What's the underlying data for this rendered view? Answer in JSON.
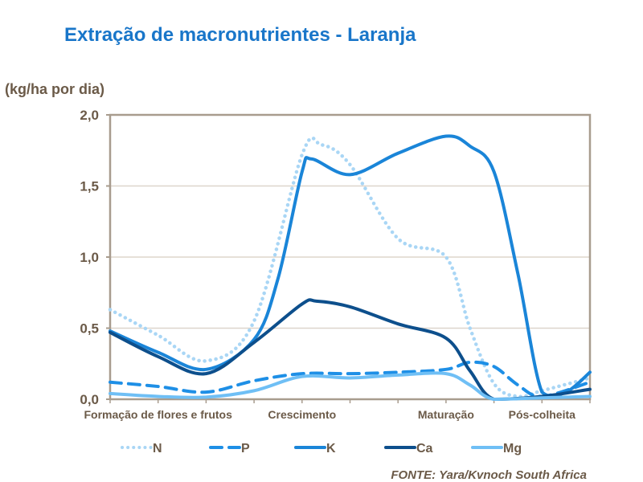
{
  "chart_data": {
    "type": "line",
    "title": "Extração de macronutrientes - Laranja",
    "ylabel": "(kg/ha por dia)",
    "ylim": [
      0,
      2.0
    ],
    "yticks": [
      "0,0",
      "0,5",
      "1,0",
      "1,5",
      "2,0"
    ],
    "grid": true,
    "legend": "bottom",
    "categories": [
      {
        "label": "Formação de flores e frutos",
        "x": 1
      },
      {
        "label": "Crescimento",
        "x": 4
      },
      {
        "label": "Maturação",
        "x": 7
      },
      {
        "label": "Pós-colheita",
        "x": 9
      }
    ],
    "xlim": [
      0,
      10
    ],
    "series": [
      {
        "name": "N",
        "color": "#a9d6f5",
        "style": "dotted",
        "x": [
          0,
          1,
          2,
          3,
          4,
          4.4,
          5,
          6,
          7,
          7.5,
          8,
          8.5,
          9,
          10
        ],
        "y": [
          0.63,
          0.45,
          0.27,
          0.55,
          1.72,
          1.79,
          1.65,
          1.13,
          1.0,
          0.5,
          0.11,
          0.02,
          0.06,
          0.15
        ]
      },
      {
        "name": "P",
        "color": "#1e8fe6",
        "style": "dashed",
        "x": [
          0,
          1,
          2,
          3,
          4,
          5,
          6,
          7,
          7.5,
          8,
          8.5,
          9,
          10
        ],
        "y": [
          0.12,
          0.09,
          0.05,
          0.13,
          0.18,
          0.18,
          0.19,
          0.21,
          0.26,
          0.23,
          0.1,
          0.02,
          0.12
        ]
      },
      {
        "name": "K",
        "color": "#1a85d8",
        "style": "solid",
        "x": [
          0,
          1,
          2,
          3,
          3.5,
          4,
          4.2,
          5,
          6,
          7,
          7.5,
          8,
          8.5,
          9,
          9.5,
          10
        ],
        "y": [
          0.48,
          0.33,
          0.21,
          0.42,
          0.85,
          1.6,
          1.69,
          1.58,
          1.73,
          1.85,
          1.78,
          1.6,
          0.88,
          0.05,
          0.05,
          0.19
        ]
      },
      {
        "name": "Ca",
        "color": "#0d4f8c",
        "style": "solid",
        "x": [
          0,
          1,
          2,
          3,
          4,
          4.3,
          5,
          6,
          7,
          7.5,
          8,
          9,
          10
        ],
        "y": [
          0.47,
          0.3,
          0.18,
          0.4,
          0.67,
          0.69,
          0.65,
          0.53,
          0.43,
          0.2,
          0.0,
          0.02,
          0.07
        ]
      },
      {
        "name": "Mg",
        "color": "#6fbff5",
        "style": "solid",
        "x": [
          0,
          1,
          2,
          3,
          4,
          5,
          6,
          7,
          7.5,
          8,
          9,
          10
        ],
        "y": [
          0.04,
          0.02,
          0.015,
          0.06,
          0.16,
          0.15,
          0.17,
          0.18,
          0.1,
          0.0,
          0.01,
          0.02
        ]
      }
    ],
    "source": "FONTE: Yara/Kvnoch South Africa"
  }
}
